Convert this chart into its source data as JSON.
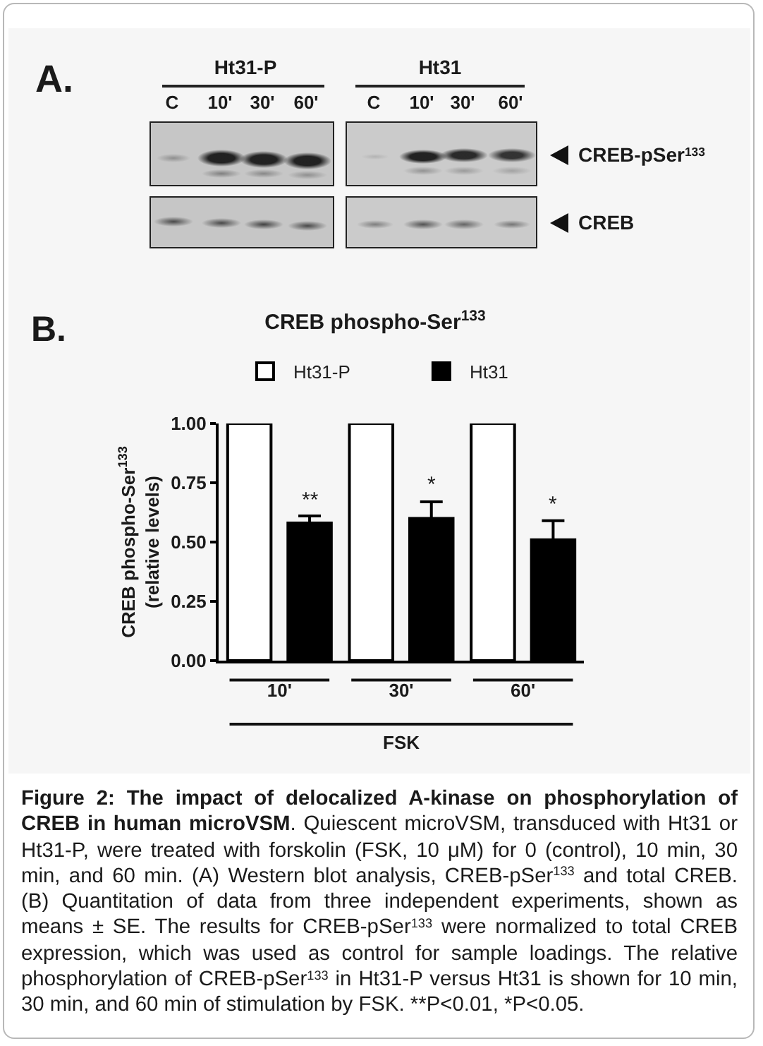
{
  "chart_data": {
    "type": "bar",
    "title": "CREB phospho-Ser$^{133}$",
    "xlabel": "FSK",
    "ylabel": "CREB phospho-Ser$^{133}$\n(relative levels)",
    "categories": [
      "10'",
      "30'",
      "60'"
    ],
    "series": [
      {
        "name": "Ht31-P",
        "color": "#ffffff",
        "values": [
          1.0,
          1.0,
          1.0
        ]
      },
      {
        "name": "Ht31",
        "color": "#000000",
        "values": [
          0.58,
          0.6,
          0.51
        ],
        "errors": [
          0.03,
          0.07,
          0.08
        ]
      }
    ],
    "ylim": [
      0,
      1
    ],
    "yticks": [
      {
        "value": 0,
        "label": "0.00"
      },
      {
        "value": 0.25,
        "label": "0.25"
      },
      {
        "value": 0.5,
        "label": "0.50"
      },
      {
        "value": 0.75,
        "label": "0.75"
      },
      {
        "value": 1,
        "label": "1.00"
      }
    ],
    "legend": "top",
    "annotations": [
      "A.",
      "Ht31-P",
      "Ht31",
      "C",
      "10'",
      "30'",
      "60'",
      "C",
      "10'",
      "30'",
      "60'",
      "CREB-pSer$^{133}$",
      "CREB",
      "B.",
      "**",
      "*",
      "*",
      "Figure 2: The impact of delocalized A-kinase on phosphorylation of",
      "CREB in human microVSM",
      ". Quiescent microVSM, transduced with Ht31 or",
      "Ht31-P, were treated with forskolin (FSK, 10 μM) for 0 (control), 10 min, 30 min, and 60 min. (A) Western blot analysis, CREB-pSer$^{133}$ and total CREB. (B) Quantitation of data from three independent experiments, shown as means ± SE. The results for CREB-pSer$^{133}$ were normalized to total CREB expression, which was used as control for sample loadings. The relative phosphorylation of CREB-pSer$^{133}$ in Ht31-P versus Ht31 is shown for 10 min, 30 min, and 60 min of stimulation by FSK. **P<0.01, *P<0.05."
    ]
  }
}
